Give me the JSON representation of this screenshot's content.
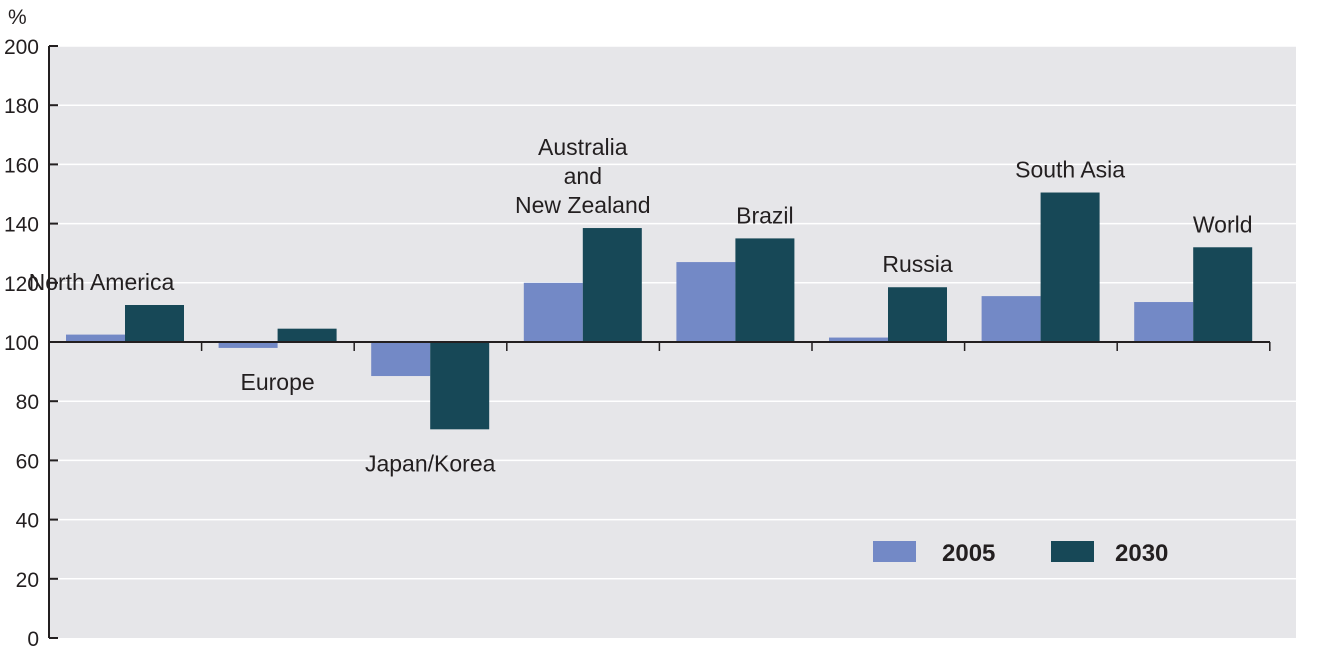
{
  "chart_data": {
    "type": "bar",
    "title": "",
    "xlabel": "",
    "ylabel": "%",
    "ylim": [
      0,
      200
    ],
    "yticks": [
      0,
      20,
      40,
      60,
      80,
      100,
      120,
      140,
      160,
      180,
      200
    ],
    "baseline": 100,
    "grid": true,
    "legend_position": "bottom-right",
    "categories": [
      "North America",
      "Europe",
      "Japan/Korea",
      "Australia and New Zealand",
      "Brazil",
      "Russia",
      "South Asia",
      "World"
    ],
    "category_label_lines": [
      [
        "North America"
      ],
      [
        "Europe"
      ],
      [
        "Japan/Korea"
      ],
      [
        "Australia",
        "and",
        "New Zealand"
      ],
      [
        "Brazil"
      ],
      [
        "Russia"
      ],
      [
        "South Asia"
      ],
      [
        "World"
      ]
    ],
    "series": [
      {
        "name": "2005",
        "color": "#7389c6",
        "values": [
          102.5,
          98,
          88.5,
          120,
          127,
          101.5,
          115.5,
          113.5
        ]
      },
      {
        "name": "2030",
        "color": "#174857",
        "values": [
          112.5,
          104.5,
          70.5,
          138.5,
          135,
          118.5,
          150.5,
          132
        ]
      }
    ],
    "plot_background": "#e6e6e9",
    "grid_color": "#ffffff"
  }
}
